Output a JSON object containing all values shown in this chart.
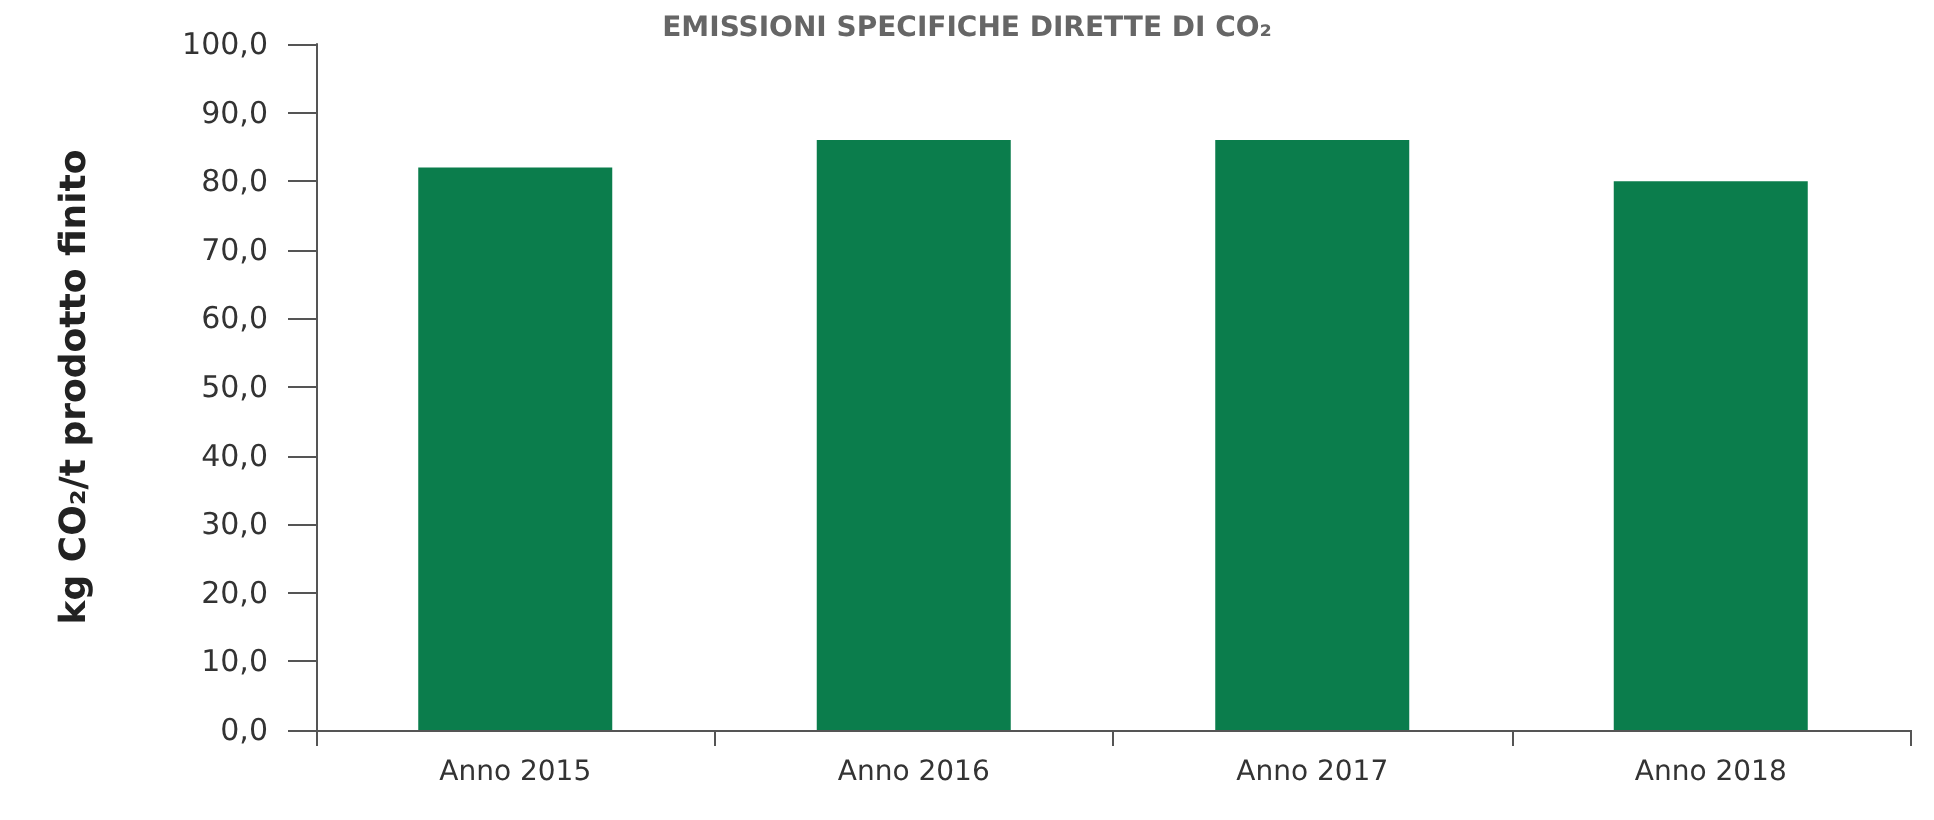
{
  "chart_data": {
    "type": "bar",
    "title": "EMISSIONI SPECIFICHE DIRETTE DI CO₂",
    "ylabel": "kg CO₂/t prodotto finito",
    "categories": [
      "Anno 2015",
      "Anno 2016",
      "Anno 2017",
      "Anno 2018"
    ],
    "values": [
      82,
      86,
      86,
      80
    ],
    "color": "#0b7d4c",
    "ylim": [
      0,
      100
    ],
    "yticks": [
      {
        "value": 0,
        "label": "0,0"
      },
      {
        "value": 10,
        "label": "10,0"
      },
      {
        "value": 20,
        "label": "20,0"
      },
      {
        "value": 30,
        "label": "30,0"
      },
      {
        "value": 40,
        "label": "40,0"
      },
      {
        "value": 50,
        "label": "50,0"
      },
      {
        "value": 60,
        "label": "60,0"
      },
      {
        "value": 70,
        "label": "70,0"
      },
      {
        "value": 80,
        "label": "80,0"
      },
      {
        "value": 90,
        "label": "90,0"
      },
      {
        "value": 100,
        "label": "100,0"
      }
    ],
    "grid": false
  }
}
